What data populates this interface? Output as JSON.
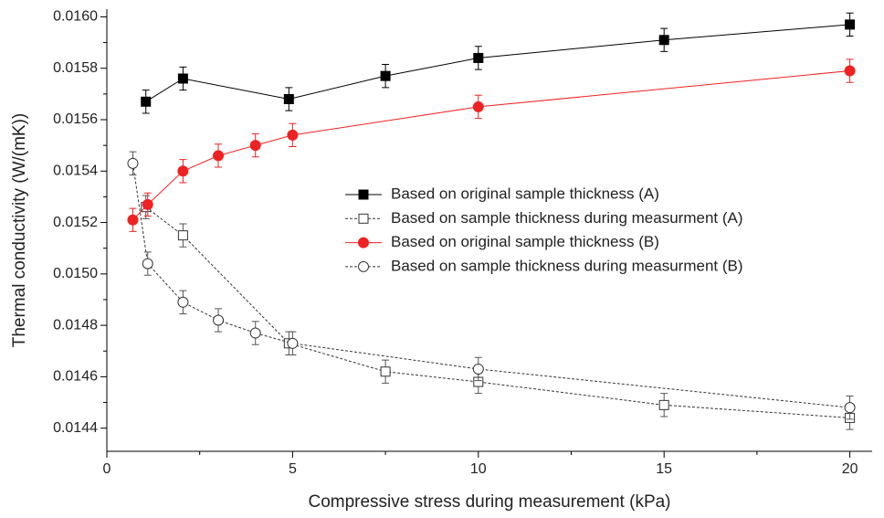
{
  "chart_data": {
    "type": "line",
    "x_label": "Compressive stress during measurement (kPa)",
    "y_label": "Thermal conductivity (W/(mK))",
    "xlim": [
      0,
      20.6
    ],
    "ylim": [
      0.01431,
      0.01603
    ],
    "xticks": [
      0,
      5,
      10,
      15,
      20
    ],
    "xticks_minor": [
      2.5,
      7.5,
      12.5,
      17.5
    ],
    "yticks": [
      0.0144,
      0.0146,
      0.0148,
      {
        "value": 0.015,
        "label": "0.0150"
      },
      0.0152,
      0.0154,
      0.0156,
      0.0158,
      {
        "value": 0.016,
        "label": "0.0160"
      }
    ],
    "yticks_minor": [
      0.0145,
      0.0147,
      0.0149,
      0.0151,
      0.0153,
      0.0155,
      0.0157,
      0.0159
    ],
    "legend": "right",
    "series": [
      {
        "name": "Based on original sample thickness (A)",
        "color": "#000000",
        "marker": "square",
        "filled": true,
        "dashed": false,
        "x": [
          1.05,
          2.05,
          4.9,
          7.5,
          10,
          15,
          20
        ],
        "values": [
          0.01567,
          0.01576,
          0.01568,
          0.01577,
          0.01584,
          0.01591,
          0.01597
        ],
        "errors": [
          4.5e-05,
          4.5e-05,
          4.5e-05,
          4.5e-05,
          4.5e-05,
          4.5e-05,
          4.5e-05
        ]
      },
      {
        "name": "Based on sample thickness during measurment (A)",
        "color": "#333333",
        "marker": "square",
        "filled": false,
        "dashed": true,
        "x": [
          1.05,
          2.05,
          4.9,
          7.5,
          10,
          15,
          20
        ],
        "values": [
          0.01526,
          0.01515,
          0.01473,
          0.01462,
          0.01458,
          0.01449,
          0.01444
        ],
        "errors": [
          4.5e-05,
          4.5e-05,
          4.5e-05,
          4.5e-05,
          4.5e-05,
          4.5e-05,
          4.5e-05
        ]
      },
      {
        "name": "Based on original sample thickness (B)",
        "color": "#ee2222",
        "marker": "circle",
        "filled": true,
        "dashed": false,
        "x": [
          0.7,
          1.1,
          2.05,
          3,
          4,
          5,
          10,
          20
        ],
        "values": [
          0.01521,
          0.01527,
          0.0154,
          0.01546,
          0.0155,
          0.01554,
          0.01565,
          0.01579
        ],
        "errors": [
          4.5e-05,
          4.5e-05,
          4.5e-05,
          4.5e-05,
          4.5e-05,
          4.5e-05,
          4.5e-05,
          4.5e-05
        ]
      },
      {
        "name": "Based on sample thickness during measurment (B)",
        "color": "#333333",
        "marker": "circle",
        "filled": false,
        "dashed": true,
        "x": [
          0.7,
          1.1,
          2.05,
          3,
          4,
          5,
          10,
          20
        ],
        "values": [
          0.01543,
          0.01504,
          0.01489,
          0.01482,
          0.01477,
          0.01473,
          0.01463,
          0.01448
        ],
        "errors": [
          4.5e-05,
          4.5e-05,
          4.5e-05,
          4.5e-05,
          4.5e-05,
          4.5e-05,
          4.5e-05,
          4.5e-05
        ]
      }
    ]
  }
}
